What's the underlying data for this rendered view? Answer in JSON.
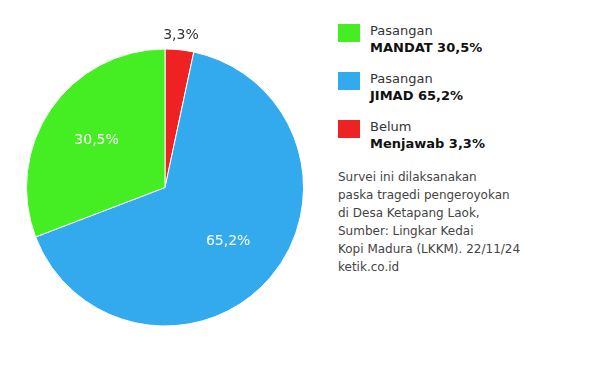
{
  "chart_data": {
    "type": "pie",
    "categories": [
      [
        "Belum",
        "Menjawab 3,3%"
      ],
      [
        "Pasangan",
        "JIMAD 65,2%"
      ],
      [
        "Pasangan",
        "MANDAT 30,5%"
      ]
    ],
    "values": [
      3.3,
      65.2,
      30.5
    ],
    "value_labels": [
      "3,3%",
      "65,2%",
      "30,5%"
    ],
    "colors": [
      "#ee2222",
      "#33aaee",
      "#44ee22"
    ],
    "data_labels": true,
    "legend": "right",
    "annotations": [
      "Survei ini dilaksanakan",
      "paska tragedi pengeroyokan",
      "di Desa Ketapang Laok,",
      "Sumber: Lingkar Kedai",
      "Kopi Madura (LKKM). 22/11/24",
      "ketik.co.id"
    ]
  }
}
